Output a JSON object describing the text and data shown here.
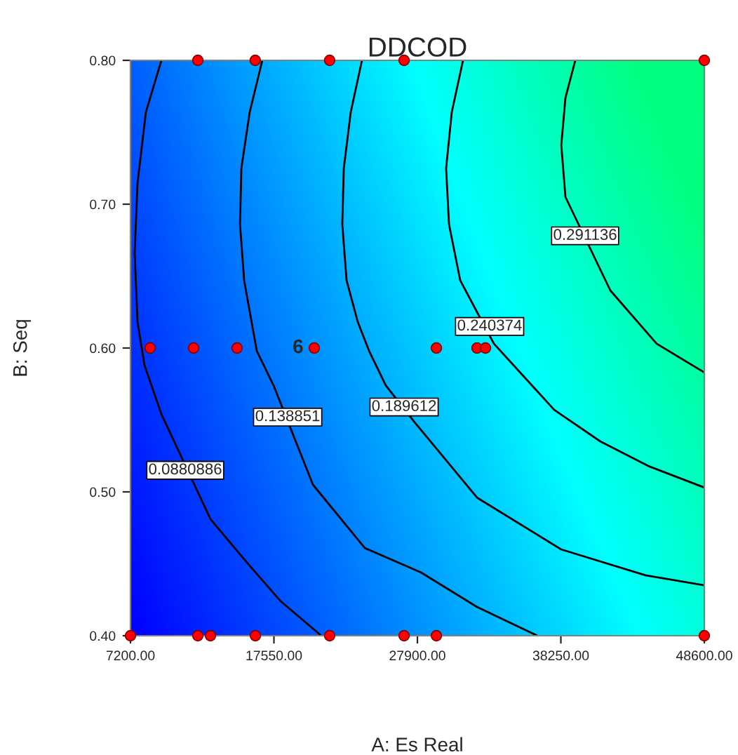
{
  "chart_data": {
    "type": "scatter",
    "title": "DDCOD",
    "xlabel": "A: Es Real",
    "ylabel": "B: Seq",
    "xlim": [
      7200,
      48600
    ],
    "ylim": [
      0.4,
      0.8
    ],
    "xticks": [
      {
        "value": 7200,
        "label": "7200.00"
      },
      {
        "value": 17550,
        "label": "17550.00"
      },
      {
        "value": 27900,
        "label": "27900.00"
      },
      {
        "value": 38250,
        "label": "38250.00"
      },
      {
        "value": 48600,
        "label": "48600.00"
      }
    ],
    "yticks": [
      {
        "value": 0.4,
        "label": "0.40"
      },
      {
        "value": 0.5,
        "label": "0.50"
      },
      {
        "value": 0.6,
        "label": "0.60"
      },
      {
        "value": 0.7,
        "label": "0.70"
      },
      {
        "value": 0.8,
        "label": "0.80"
      }
    ],
    "grid": false,
    "legend": false,
    "series": [
      {
        "type": "line",
        "color": "#000000",
        "marker": "none",
        "x": [
          9430,
          8310,
          7710,
          7500,
          7710,
          8210,
          9430,
          12970,
          15500,
          18030,
          20970
        ],
        "values": [
          0.8,
          0.764,
          0.715,
          0.666,
          0.618,
          0.588,
          0.554,
          0.481,
          0.452,
          0.424,
          0.4
        ]
      },
      {
        "type": "line",
        "color": "#000000",
        "marker": "none",
        "x": [
          16710,
          15800,
          15200,
          15100,
          15400,
          16310,
          17520,
          20360,
          24100,
          28150,
          32200,
          36550
        ],
        "values": [
          0.8,
          0.764,
          0.725,
          0.686,
          0.647,
          0.598,
          0.574,
          0.505,
          0.461,
          0.444,
          0.42,
          0.4
        ]
      },
      {
        "type": "line",
        "color": "#000000",
        "marker": "none",
        "x": [
          23900,
          23090,
          22590,
          22480,
          22790,
          23600,
          24410,
          25620,
          27650,
          32200,
          38270,
          44350,
          48600
        ],
        "values": [
          0.8,
          0.764,
          0.725,
          0.686,
          0.647,
          0.618,
          0.598,
          0.574,
          0.549,
          0.496,
          0.46,
          0.442,
          0.435
        ]
      },
      {
        "type": "line",
        "color": "#000000",
        "marker": "none",
        "x": [
          31190,
          30380,
          29970,
          30180,
          30990,
          32200,
          33420,
          37770,
          41110,
          44550,
          48600
        ],
        "values": [
          0.8,
          0.764,
          0.725,
          0.686,
          0.647,
          0.625,
          0.603,
          0.557,
          0.535,
          0.518,
          0.503
        ]
      },
      {
        "type": "line",
        "color": "#000000",
        "marker": "none",
        "x": [
          39290,
          38580,
          38280,
          38580,
          41820,
          45160,
          48600
        ],
        "values": [
          0.8,
          0.774,
          0.741,
          0.705,
          0.64,
          0.603,
          0.583
        ]
      },
      {
        "color": "#ff0000",
        "marker": "circle",
        "x": [
          12060,
          16200,
          21570,
          26940,
          48600,
          8620,
          11750,
          14890,
          20460,
          29270,
          32200,
          32810,
          7200,
          12060,
          12970,
          16210,
          21570,
          26940,
          29270,
          48600
        ],
        "values": [
          0.8,
          0.8,
          0.8,
          0.8,
          0.8,
          0.6,
          0.6,
          0.6,
          0.6,
          0.6,
          0.6,
          0.6,
          0.4,
          0.4,
          0.4,
          0.4,
          0.4,
          0.4,
          0.4,
          0.4
        ]
      }
    ],
    "annotations": [
      {
        "text": "0.0880886",
        "x": 11150,
        "y": 0.515
      },
      {
        "text": "0.138851",
        "x": 18540,
        "y": 0.552
      },
      {
        "text": "0.189612",
        "x": 26940,
        "y": 0.559
      },
      {
        "text": "0.240374",
        "x": 33110,
        "y": 0.615
      },
      {
        "text": "0.291136",
        "x": 40000,
        "y": 0.678
      },
      {
        "text": "6",
        "x": 20460,
        "y": 0.6
      }
    ]
  }
}
